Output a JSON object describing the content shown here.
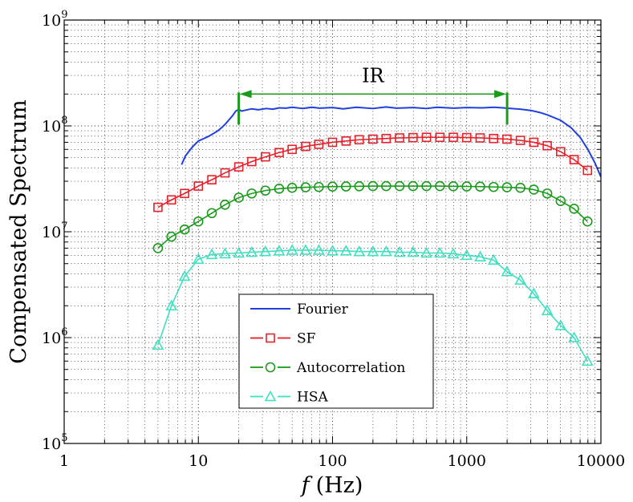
{
  "chart_data": {
    "type": "line",
    "xscale": "log",
    "yscale": "log",
    "xlabel_var": "f",
    "xlabel_unit": "(Hz)",
    "ylabel": "Compensated Spectrum",
    "xlim": [
      1,
      10000
    ],
    "ylim": [
      100000,
      1000000000
    ],
    "grid": true,
    "legend_position": "lower-center",
    "x_ticks": [
      {
        "value": 1,
        "label": "1"
      },
      {
        "value": 10,
        "label": "10"
      },
      {
        "value": 100,
        "label": "100"
      },
      {
        "value": 1000,
        "label": "1000"
      },
      {
        "value": 10000,
        "label": "10000"
      }
    ],
    "y_ticks": [
      {
        "value": 100000,
        "base": "10",
        "exp": "5"
      },
      {
        "value": 1000000,
        "base": "10",
        "exp": "6"
      },
      {
        "value": 10000000,
        "base": "10",
        "exp": "7"
      },
      {
        "value": 100000000,
        "base": "10",
        "exp": "8"
      },
      {
        "value": 1000000000,
        "base": "10",
        "exp": "9"
      }
    ],
    "annotation": {
      "label": "IR",
      "x_start": 20,
      "x_end": 2000,
      "y": 200000000,
      "color": "#1a9a1a"
    },
    "series": [
      {
        "name": "Fourier",
        "color": "#1f3fe0",
        "marker": "none",
        "dash": false,
        "x": [
          7.5,
          8,
          9,
          10,
          11,
          12,
          13,
          14,
          15,
          16,
          17,
          18,
          19,
          20,
          21,
          22,
          25,
          28,
          32,
          36,
          40,
          45,
          50,
          60,
          70,
          80,
          100,
          120,
          150,
          200,
          250,
          300,
          400,
          500,
          600,
          800,
          1000,
          1300,
          1600,
          2000,
          2500,
          3000,
          3500,
          4000,
          5000,
          6000,
          7000,
          8000,
          9000,
          10000
        ],
        "y": [
          43000000,
          52000000,
          63000000,
          72000000,
          76000000,
          80000000,
          85000000,
          90000000,
          97000000,
          105000000,
          115000000,
          125000000,
          138000000,
          143000000,
          138000000,
          140000000,
          145000000,
          142000000,
          146000000,
          144000000,
          148000000,
          147000000,
          150000000,
          146000000,
          150000000,
          147000000,
          149000000,
          145000000,
          150000000,
          146000000,
          151000000,
          147000000,
          149000000,
          146000000,
          150000000,
          147000000,
          149000000,
          148000000,
          150000000,
          147000000,
          144000000,
          140000000,
          134000000,
          127000000,
          113000000,
          96000000,
          78000000,
          60000000,
          45000000,
          33000000
        ]
      },
      {
        "name": "SF",
        "color": "#e8202a",
        "marker": "square",
        "dash": true,
        "x": [
          5,
          6.3,
          7.9,
          10,
          12.6,
          15.8,
          20,
          25,
          31.6,
          40,
          50,
          63,
          79,
          100,
          126,
          158,
          200,
          251,
          316,
          398,
          501,
          631,
          794,
          1000,
          1259,
          1585,
          1995,
          2512,
          3162,
          3981,
          5012,
          6310,
          7943
        ],
        "y": [
          17000000,
          20000000,
          23000000,
          27000000,
          31000000,
          36000000,
          41000000,
          46000000,
          51000000,
          56000000,
          60000000,
          64000000,
          67000000,
          70000000,
          72000000,
          74000000,
          75000000,
          76000000,
          77000000,
          77500000,
          78000000,
          78000000,
          78000000,
          77500000,
          77000000,
          76000000,
          75000000,
          73000000,
          70000000,
          65000000,
          57000000,
          48000000,
          38000000
        ]
      },
      {
        "name": "Autocorrelation",
        "color": "#1a9a1a",
        "marker": "circle",
        "dash": true,
        "x": [
          5,
          6.3,
          7.9,
          10,
          12.6,
          15.8,
          20,
          25,
          31.6,
          40,
          50,
          63,
          79,
          100,
          126,
          158,
          200,
          251,
          316,
          398,
          501,
          631,
          794,
          1000,
          1259,
          1585,
          1995,
          2512,
          3162,
          3981,
          5012,
          6310,
          7943
        ],
        "y": [
          7000000,
          9000000,
          10500000,
          12500000,
          15000000,
          18000000,
          21000000,
          23000000,
          24500000,
          25500000,
          26000000,
          26300000,
          26500000,
          26700000,
          26800000,
          26900000,
          27000000,
          27000000,
          27000000,
          27000000,
          27000000,
          27000000,
          26900000,
          26800000,
          26700000,
          26500000,
          26300000,
          26000000,
          25000000,
          23000000,
          19500000,
          16500000,
          12500000
        ]
      },
      {
        "name": "HSA",
        "color": "#40e0c0",
        "marker": "triangle",
        "dash": true,
        "x": [
          5,
          6.3,
          7.9,
          10,
          12.6,
          15.8,
          20,
          25,
          31.6,
          40,
          50,
          63,
          79,
          100,
          126,
          158,
          200,
          251,
          316,
          398,
          501,
          631,
          794,
          1000,
          1259,
          1585,
          1995,
          2512,
          3162,
          3981,
          5012,
          6310,
          7943
        ],
        "y": [
          850000,
          2000000,
          3800000,
          5500000,
          6100000,
          6200000,
          6300000,
          6400000,
          6500000,
          6600000,
          6700000,
          6700000,
          6700000,
          6600000,
          6600000,
          6500000,
          6500000,
          6500000,
          6400000,
          6400000,
          6300000,
          6300000,
          6200000,
          6000000,
          5800000,
          5400000,
          4200000,
          3500000,
          2600000,
          1800000,
          1300000,
          1000000,
          600000
        ]
      }
    ]
  }
}
